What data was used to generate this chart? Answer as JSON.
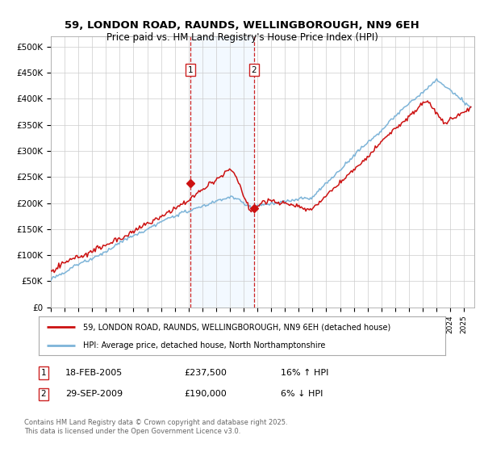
{
  "title": "59, LONDON ROAD, RAUNDS, WELLINGBOROUGH, NN9 6EH",
  "subtitle": "Price paid vs. HM Land Registry's House Price Index (HPI)",
  "ylim": [
    0,
    520000
  ],
  "yticks": [
    0,
    50000,
    100000,
    150000,
    200000,
    250000,
    300000,
    350000,
    400000,
    450000,
    500000
  ],
  "ytick_labels": [
    "£0",
    "£50K",
    "£100K",
    "£150K",
    "£200K",
    "£250K",
    "£300K",
    "£350K",
    "£400K",
    "£450K",
    "£500K"
  ],
  "hpi_color": "#7db4d8",
  "price_color": "#cc1111",
  "marker1_price": 237500,
  "marker2_price": 190000,
  "marker1_year": 2005.13,
  "marker2_year": 2009.75,
  "legend_line1": "59, LONDON ROAD, RAUNDS, WELLINGBOROUGH, NN9 6EH (detached house)",
  "legend_line2": "HPI: Average price, detached house, North Northamptonshire",
  "footnote": "Contains HM Land Registry data © Crown copyright and database right 2025.\nThis data is licensed under the Open Government Licence v3.0.",
  "bg_color": "#ffffff",
  "grid_color": "#cccccc",
  "shade_color": "#ddeeff",
  "shade_alpha": 0.35
}
